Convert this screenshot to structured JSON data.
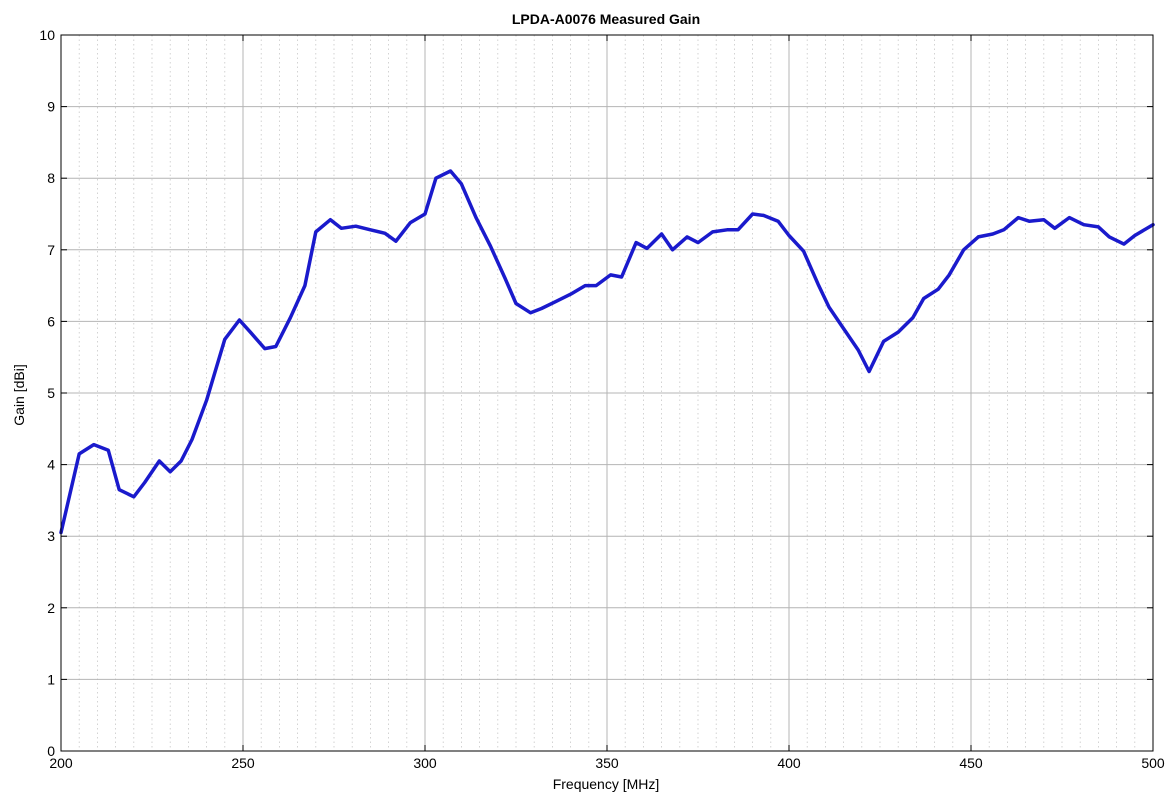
{
  "chart_data": {
    "type": "line",
    "title": "LPDA-A0076 Measured Gain",
    "xlabel": "Frequency [MHz]",
    "ylabel": "Gain [dBi]",
    "xlim": [
      200,
      500
    ],
    "ylim": [
      0,
      10
    ],
    "x_major_ticks": [
      200,
      250,
      300,
      350,
      400,
      450,
      500
    ],
    "y_major_ticks": [
      0,
      1,
      2,
      3,
      4,
      5,
      6,
      7,
      8,
      9,
      10
    ],
    "x_minor_step": 5,
    "grid": true,
    "line_color": "#1a1acc",
    "series": [
      {
        "x": [
          200,
          205,
          209,
          213,
          216,
          220,
          223,
          227,
          230,
          233,
          236,
          240,
          245,
          249,
          252,
          256,
          259,
          263,
          267,
          270,
          274,
          277,
          281,
          285,
          289,
          292,
          296,
          300,
          303,
          307,
          310,
          314,
          318,
          322,
          325,
          329,
          332,
          336,
          340,
          344,
          347,
          351,
          354,
          358,
          361,
          365,
          368,
          372,
          375,
          379,
          383,
          386,
          390,
          393,
          397,
          400,
          404,
          408,
          411,
          415,
          419,
          422,
          426,
          430,
          434,
          437,
          441,
          444,
          448,
          452,
          456,
          459,
          463,
          466,
          470,
          473,
          477,
          481,
          485,
          488,
          492,
          495,
          500
        ],
        "values": [
          3.05,
          4.15,
          4.28,
          4.2,
          3.65,
          3.55,
          3.75,
          4.05,
          3.9,
          4.05,
          4.35,
          4.9,
          5.75,
          6.02,
          5.85,
          5.62,
          5.65,
          6.05,
          6.5,
          7.25,
          7.42,
          7.3,
          7.33,
          7.28,
          7.23,
          7.12,
          7.38,
          7.5,
          8.0,
          8.1,
          7.92,
          7.45,
          7.05,
          6.6,
          6.25,
          6.12,
          6.18,
          6.28,
          6.38,
          6.5,
          6.5,
          6.65,
          6.62,
          7.1,
          7.02,
          7.22,
          7.0,
          7.18,
          7.1,
          7.25,
          7.28,
          7.28,
          7.5,
          7.48,
          7.4,
          7.2,
          6.98,
          6.52,
          6.2,
          5.9,
          5.6,
          5.3,
          5.72,
          5.85,
          6.05,
          6.32,
          6.45,
          6.65,
          7.0,
          7.18,
          7.22,
          7.28,
          7.45,
          7.4,
          7.42,
          7.3,
          7.45,
          7.35,
          7.32,
          7.18,
          7.08,
          7.2,
          7.35
        ]
      }
    ]
  }
}
